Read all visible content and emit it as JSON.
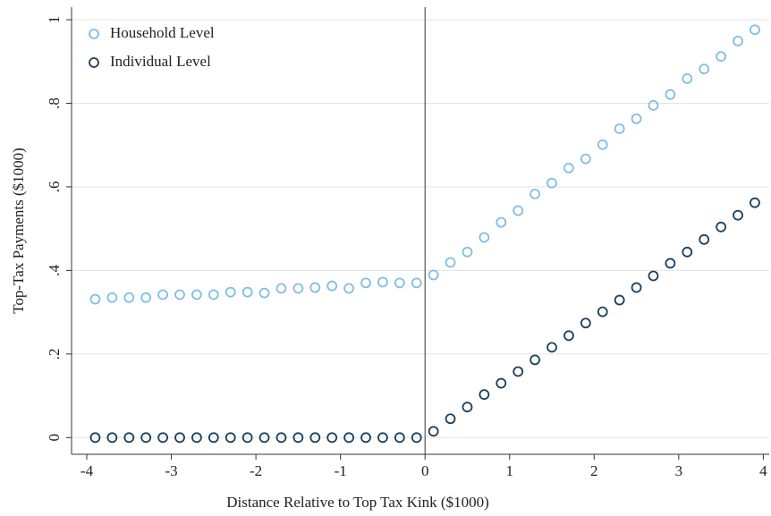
{
  "chart_data": {
    "type": "scatter",
    "xlabel": "Distance Relative to Top Tax Kink ($1000)",
    "ylabel": "Top-Tax Payments ($1000)",
    "x": [
      -3.9,
      -3.7,
      -3.5,
      -3.3,
      -3.1,
      -2.9,
      -2.7,
      -2.5,
      -2.3,
      -2.1,
      -1.9,
      -1.7,
      -1.5,
      -1.3,
      -1.1,
      -0.9,
      -0.7,
      -0.5,
      -0.3,
      -0.1,
      0.1,
      0.3,
      0.5,
      0.7,
      0.9,
      1.1,
      1.3,
      1.5,
      1.7,
      1.9,
      2.1,
      2.3,
      2.5,
      2.7,
      2.9,
      3.1,
      3.3,
      3.5,
      3.7,
      3.9
    ],
    "series": [
      {
        "name": "Household Level",
        "color": "#7fbfe2",
        "values": [
          0.331,
          0.335,
          0.335,
          0.335,
          0.342,
          0.342,
          0.342,
          0.342,
          0.348,
          0.348,
          0.346,
          0.357,
          0.357,
          0.359,
          0.363,
          0.357,
          0.37,
          0.372,
          0.37,
          0.37,
          0.389,
          0.419,
          0.444,
          0.479,
          0.515,
          0.543,
          0.583,
          0.609,
          0.645,
          0.667,
          0.701,
          0.739,
          0.763,
          0.795,
          0.821,
          0.859,
          0.882,
          0.912,
          0.949,
          0.976
        ]
      },
      {
        "name": "Individual Level",
        "color": "#1b3f5e",
        "values": [
          0,
          0,
          0,
          0,
          0,
          0,
          0,
          0,
          0,
          0,
          0,
          0,
          0,
          0,
          0,
          0,
          0,
          0,
          0,
          0,
          0.015,
          0.045,
          0.073,
          0.103,
          0.13,
          0.158,
          0.186,
          0.216,
          0.244,
          0.274,
          0.301,
          0.329,
          0.359,
          0.387,
          0.417,
          0.444,
          0.474,
          0.504,
          0.532,
          0.562
        ]
      }
    ],
    "xlim": [
      -4.18,
      4.07
    ],
    "ylim": [
      -0.04,
      1.03
    ],
    "xticks": [
      -4,
      -3,
      -2,
      -1,
      0,
      1,
      2,
      3,
      4
    ],
    "yticks": [
      0,
      {
        "value": 0.2,
        "label": ".2"
      },
      {
        "value": 0.4,
        "label": ".4"
      },
      {
        "value": 0.6,
        "label": ".6"
      },
      {
        "value": 0.8,
        "label": ".8"
      },
      1
    ],
    "vline": 0,
    "grid": true,
    "legend": "upper left"
  }
}
